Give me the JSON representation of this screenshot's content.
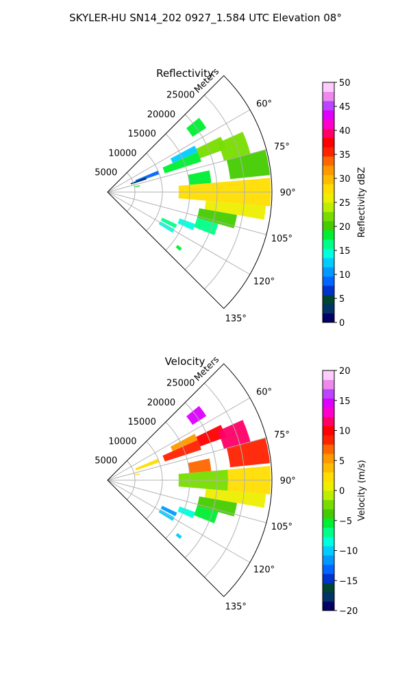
{
  "figure_title": "SKYLER-HU  SN14_202  0927_1.584 UTC Elevation 08°",
  "chart_data": [
    {
      "type": "heatmap",
      "subtype": "polar-sector-ppi",
      "title": "Reflectivity",
      "radial_label": "Meters",
      "radial_ticks": [
        5000,
        10000,
        15000,
        20000,
        25000
      ],
      "radial_tick_labels": [
        "5000",
        "10000",
        "15000",
        "20000",
        "25000"
      ],
      "rmax": 30000,
      "theta_range_deg": [
        45,
        135
      ],
      "theta_ticks": [
        60,
        75,
        90,
        105,
        120,
        135
      ],
      "theta_tick_labels": [
        "60°",
        "75°",
        "90°",
        "105°",
        "120°",
        "135°"
      ],
      "grid": true,
      "colorbar": {
        "label": "Reflectivity dBZ",
        "min": 0,
        "max": 50,
        "ticks": [
          0,
          5,
          10,
          15,
          20,
          25,
          30,
          35,
          40,
          45,
          50
        ],
        "tick_labels": [
          "0",
          "5",
          "10",
          "15",
          "20",
          "25",
          "30",
          "35",
          "40",
          "45",
          "50"
        ],
        "placement": "right"
      },
      "echo_regions": [
        {
          "theta": [
            51,
            57
          ],
          "r": [
            18500,
            21500
          ],
          "value": 18
        },
        {
          "theta": [
            62,
            66
          ],
          "r": [
            13000,
            18000
          ],
          "value": 12
        },
        {
          "theta": [
            67,
            71
          ],
          "r": [
            5500,
            10000
          ],
          "value": 8
        },
        {
          "theta": [
            69,
            72
          ],
          "r": [
            4500,
            7500
          ],
          "value": 3
        },
        {
          "theta": [
            66,
            72
          ],
          "r": [
            11000,
            18000
          ],
          "value": 18
        },
        {
          "theta": [
            64,
            70
          ],
          "r": [
            18000,
            23000
          ],
          "value": 22
        },
        {
          "theta": [
            66,
            75
          ],
          "r": [
            22000,
            27000
          ],
          "value": 23
        },
        {
          "theta": [
            75,
            84
          ],
          "r": [
            22500,
            29800
          ],
          "value": 21
        },
        {
          "theta": [
            78,
            85
          ],
          "r": [
            15000,
            19000
          ],
          "value": 18
        },
        {
          "theta": [
            85,
            95
          ],
          "r": [
            13000,
            29800
          ],
          "value": 27
        },
        {
          "theta": [
            95,
            100
          ],
          "r": [
            18000,
            29000
          ],
          "value": 25
        },
        {
          "theta": [
            100,
            106
          ],
          "r": [
            17000,
            24000
          ],
          "value": 20
        },
        {
          "theta": [
            106,
            112
          ],
          "r": [
            17000,
            21000
          ],
          "value": 17
        },
        {
          "theta": [
            110,
            114
          ],
          "r": [
            14000,
            17000
          ],
          "value": 14
        },
        {
          "theta": [
            115,
            118
          ],
          "r": [
            11000,
            14000
          ],
          "value": 16
        },
        {
          "theta": [
            119,
            122
          ],
          "r": [
            11000,
            14000
          ],
          "value": 15
        },
        {
          "theta": [
            127,
            129
          ],
          "r": [
            16000,
            17000
          ],
          "value": 18
        },
        {
          "theta": [
            78,
            80
          ],
          "r": [
            5000,
            6000
          ],
          "value": 18
        }
      ]
    },
    {
      "type": "heatmap",
      "subtype": "polar-sector-ppi",
      "title": "Velocity",
      "radial_label": "Meters",
      "radial_ticks": [
        5000,
        10000,
        15000,
        20000,
        25000
      ],
      "radial_tick_labels": [
        "5000",
        "10000",
        "15000",
        "20000",
        "25000"
      ],
      "rmax": 30000,
      "theta_range_deg": [
        45,
        135
      ],
      "theta_ticks": [
        60,
        75,
        90,
        105,
        120,
        135
      ],
      "theta_tick_labels": [
        "60°",
        "75°",
        "90°",
        "105°",
        "120°",
        "135°"
      ],
      "grid": true,
      "colorbar": {
        "label": "Velocity (m/s)",
        "min": -20,
        "max": 20,
        "ticks": [
          -20,
          -15,
          -10,
          -5,
          0,
          5,
          10,
          15,
          20
        ],
        "tick_labels": [
          "−20",
          "−15",
          "−10",
          "−5",
          "0",
          "5",
          "10",
          "15",
          "20"
        ],
        "placement": "right"
      },
      "echo_regions": [
        {
          "theta": [
            51,
            57
          ],
          "r": [
            18500,
            21500
          ],
          "value": 14
        },
        {
          "theta": [
            62,
            66
          ],
          "r": [
            13000,
            18000
          ],
          "value": 6
        },
        {
          "theta": [
            67,
            71
          ],
          "r": [
            5500,
            10000
          ],
          "value": 2
        },
        {
          "theta": [
            66,
            72
          ],
          "r": [
            11000,
            18000
          ],
          "value": 8
        },
        {
          "theta": [
            64,
            70
          ],
          "r": [
            18000,
            23000
          ],
          "value": 10
        },
        {
          "theta": [
            66,
            75
          ],
          "r": [
            22000,
            27000
          ],
          "value": 11
        },
        {
          "theta": [
            75,
            84
          ],
          "r": [
            22500,
            29800
          ],
          "value": 9
        },
        {
          "theta": [
            78,
            85
          ],
          "r": [
            15000,
            19000
          ],
          "value": 7
        },
        {
          "theta": [
            85,
            95
          ],
          "r": [
            13000,
            22000
          ],
          "value": -2
        },
        {
          "theta": [
            85,
            95
          ],
          "r": [
            22000,
            29800
          ],
          "value": 3
        },
        {
          "theta": [
            95,
            100
          ],
          "r": [
            18000,
            29000
          ],
          "value": 1
        },
        {
          "theta": [
            100,
            106
          ],
          "r": [
            17000,
            24000
          ],
          "value": -4
        },
        {
          "theta": [
            106,
            112
          ],
          "r": [
            17000,
            21000
          ],
          "value": -6
        },
        {
          "theta": [
            110,
            114
          ],
          "r": [
            14000,
            17000
          ],
          "value": -9
        },
        {
          "theta": [
            115,
            118
          ],
          "r": [
            11000,
            14000
          ],
          "value": -11
        },
        {
          "theta": [
            119,
            122
          ],
          "r": [
            11000,
            14000
          ],
          "value": -10
        },
        {
          "theta": [
            127,
            129
          ],
          "r": [
            16000,
            17000
          ],
          "value": -10
        },
        {
          "theta": [
            78,
            80
          ],
          "r": [
            5000,
            6000
          ],
          "value": 2
        }
      ]
    }
  ],
  "colormap_stops": [
    "#000066",
    "#003366",
    "#004433",
    "#0033cc",
    "#0066ff",
    "#0099ff",
    "#00ccff",
    "#00ffdd",
    "#00ff88",
    "#00ee33",
    "#44cc00",
    "#77dd00",
    "#bbee00",
    "#eeee00",
    "#ffdd00",
    "#ffbb00",
    "#ff9900",
    "#ff6600",
    "#ff2200",
    "#ff0000",
    "#ff0066",
    "#ff00cc",
    "#dd00ff",
    "#bb44ff",
    "#ee88ee",
    "#ffccff"
  ]
}
